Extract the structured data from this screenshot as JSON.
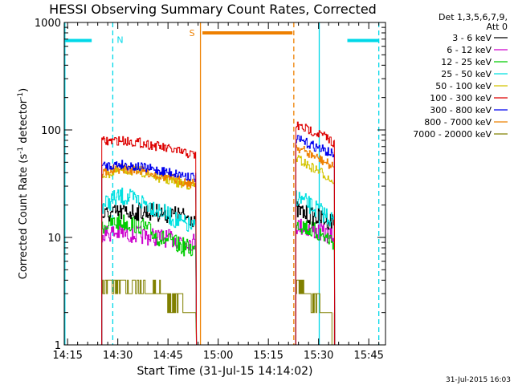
{
  "chart_data": {
    "type": "line",
    "title": "HESSI Observing Summary Count Rates, Corrected",
    "xlabel": "Start Time (31-Jul-15 14:14:02)",
    "ylabel_main": "Corrected Count Rate (s",
    "ylabel_sup1": "-1",
    "ylabel_mid": " detector",
    "ylabel_sup2": "-1",
    "ylabel_end": ")",
    "x_unit": "minutes after 14:14:02",
    "xlim": [
      0,
      96
    ],
    "ylim": [
      1,
      1000
    ],
    "y_scale": "log",
    "x_ticks": [
      {
        "t": 1,
        "label": "14:15"
      },
      {
        "t": 16,
        "label": "14:30"
      },
      {
        "t": 31,
        "label": "14:45"
      },
      {
        "t": 46,
        "label": "15:00"
      },
      {
        "t": 61,
        "label": "15:15"
      },
      {
        "t": 76,
        "label": "15:30"
      },
      {
        "t": 91,
        "label": "15:45"
      }
    ],
    "y_ticks": [
      {
        "v": 1,
        "label": "1"
      },
      {
        "v": 10,
        "label": "10"
      },
      {
        "v": 100,
        "label": "100"
      },
      {
        "v": 1000,
        "label": "1000"
      }
    ],
    "legend_header": [
      "Det 1,3,5,6,7,9,",
      "Att 0"
    ],
    "legend_position": "right",
    "segments": [
      [
        11.2,
        39.5
      ],
      [
        69.2,
        80.8
      ]
    ],
    "series": [
      {
        "name": "3 - 6 keV",
        "color": "#000000",
        "seg1": [
          16,
          17,
          17.5,
          17,
          16,
          15
        ],
        "seg2": [
          18,
          16,
          15,
          14
        ]
      },
      {
        "name": "6 - 12 keV",
        "color": "#cc00cc",
        "seg1": [
          11,
          11,
          10.5,
          10,
          9.5,
          9
        ],
        "seg2": [
          13,
          12,
          11,
          10
        ]
      },
      {
        "name": "12 - 25 keV",
        "color": "#00cc00",
        "seg1": [
          13,
          14,
          13,
          10,
          8.5,
          7.5
        ],
        "seg2": [
          14,
          12,
          10.5,
          9
        ]
      },
      {
        "name": "25 - 50 keV",
        "color": "#00e0e0",
        "seg1": [
          20,
          24,
          22,
          18,
          14,
          12
        ],
        "seg2": [
          24,
          20,
          17,
          14
        ]
      },
      {
        "name": "50 - 100 keV",
        "color": "#d4c400",
        "seg1": [
          38,
          42,
          41,
          36,
          32,
          30
        ],
        "seg2": [
          55,
          46,
          40,
          32
        ]
      },
      {
        "name": "100 - 300 keV",
        "color": "#dd0000",
        "seg1": [
          78,
          80,
          76,
          70,
          63,
          58
        ],
        "seg2": [
          110,
          100,
          90,
          75
        ]
      },
      {
        "name": "300 - 800 keV",
        "color": "#0000ee",
        "seg1": [
          46,
          48,
          45,
          42,
          39,
          36
        ],
        "seg2": [
          82,
          74,
          66,
          58
        ]
      },
      {
        "name": "800 - 7000 keV",
        "color": "#ee8000",
        "seg1": [
          40,
          44,
          42,
          38,
          34,
          31
        ],
        "seg2": [
          70,
          60,
          52,
          44
        ]
      },
      {
        "name": "7000 - 20000 keV",
        "color": "#808000",
        "seg1": [
          3.5,
          3.5,
          3.5,
          3.0,
          2.5,
          1.6
        ],
        "seg2": [
          3.5,
          3.0,
          2.0,
          1.3
        ]
      }
    ],
    "flags": {
      "night": {
        "letter": "N",
        "color": "#00d8e8",
        "bars": [
          [
            0,
            8.2
          ],
          [
            84.6,
            94
          ]
        ],
        "bar_value": 680,
        "solid_lines": [
          0.2,
          76.2
        ],
        "dashed_lines": [
          14.5,
          94
        ]
      },
      "saa": {
        "letter": "S",
        "color": "#ee8000",
        "bars": [
          [
            41.3,
            68.2
          ]
        ],
        "bar_value": 800,
        "solid_lines": [
          40.7
        ],
        "dashed_lines": [
          68.6
        ]
      }
    }
  },
  "footer_timestamp": "31-Jul-2015 16:03"
}
